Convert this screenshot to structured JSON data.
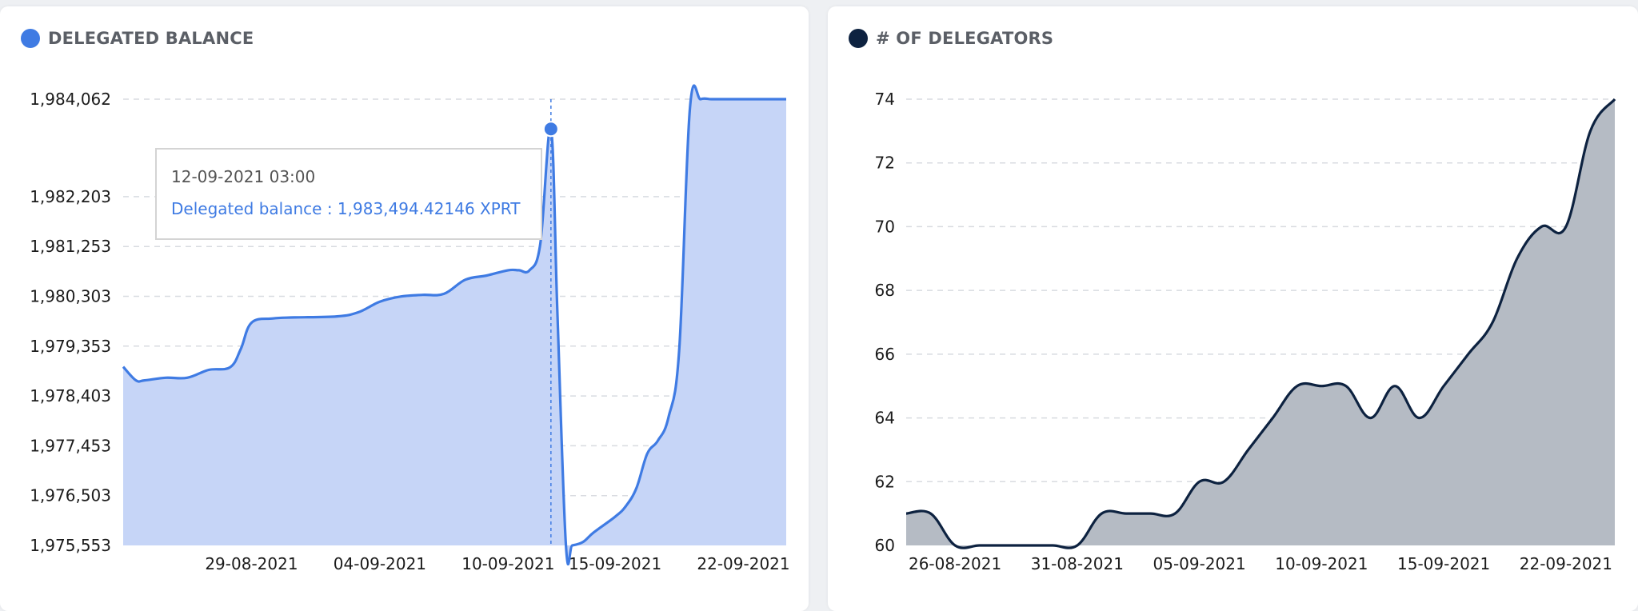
{
  "panels": {
    "left": {
      "title": "DELEGATED BALANCE",
      "color": "#3f7be3",
      "fill": "#c6d5f7",
      "tooltip": {
        "date": "12-09-2021 03:00",
        "label": "Delegated balance : 1,983,494.42146 XPRT"
      }
    },
    "right": {
      "title": "# OF DELEGATORS",
      "color": "#0d2240",
      "fill": "#b5bbc4"
    }
  },
  "chart_data": [
    {
      "type": "area",
      "title": "DELEGATED BALANCE",
      "xlabel": "",
      "ylabel": "",
      "ylim": [
        1975553,
        1984062
      ],
      "yticks": [
        1975553,
        1976503,
        1977453,
        1978403,
        1979353,
        1980303,
        1981253,
        1982203,
        1984062
      ],
      "ytick_labels": [
        "1,975,553",
        "1,976,503",
        "1,977,453",
        "1,978,403",
        "1,979,353",
        "1,980,303",
        "1,981,253",
        "1,982,203",
        "1,984,062"
      ],
      "xlim": [
        0,
        31
      ],
      "xticks": [
        6,
        12,
        18,
        23,
        29
      ],
      "xtick_labels": [
        "29-08-2021",
        "04-09-2021",
        "10-09-2021",
        "15-09-2021",
        "22-09-2021"
      ],
      "grid": true,
      "series": [
        {
          "name": "Delegated balance",
          "x": [
            0,
            0.6,
            1,
            2,
            3,
            4,
            5,
            5.5,
            6,
            7,
            8,
            10,
            11,
            12,
            13,
            14,
            15,
            16,
            17,
            18,
            18.5,
            19,
            19.5,
            20,
            20.3,
            20.7,
            21,
            21.5,
            22,
            23,
            23.5,
            24,
            24.5,
            25,
            25.5,
            26,
            26.5,
            27,
            27.5,
            28,
            29,
            30,
            31
          ],
          "y": [
            1978960,
            1978700,
            1978700,
            1978750,
            1978750,
            1978900,
            1978950,
            1979300,
            1979800,
            1979880,
            1979900,
            1979920,
            1980000,
            1980200,
            1980300,
            1980330,
            1980350,
            1980620,
            1980700,
            1980800,
            1980800,
            1980800,
            1981300,
            1983494,
            1980000,
            1975553,
            1975553,
            1975620,
            1975800,
            1976100,
            1976300,
            1976650,
            1977300,
            1977550,
            1978000,
            1979300,
            1983900,
            1984062,
            1984062,
            1984062,
            1984062,
            1984062,
            1984062
          ]
        }
      ]
    },
    {
      "type": "area",
      "title": "# OF DELEGATORS",
      "xlabel": "",
      "ylabel": "",
      "ylim": [
        60,
        74
      ],
      "yticks": [
        60,
        62,
        64,
        66,
        68,
        70,
        72,
        74
      ],
      "ytick_labels": [
        "60",
        "62",
        "64",
        "66",
        "68",
        "70",
        "72",
        "74"
      ],
      "xlim": [
        0,
        29
      ],
      "xticks": [
        2,
        7,
        12,
        17,
        22,
        27
      ],
      "xtick_labels": [
        "26-08-2021",
        "31-08-2021",
        "05-09-2021",
        "10-09-2021",
        "15-09-2021",
        "22-09-2021"
      ],
      "grid": true,
      "series": [
        {
          "name": "# of delegators",
          "x": [
            0,
            1,
            2,
            3,
            4,
            5,
            6,
            7,
            8,
            9,
            10,
            11,
            12,
            13,
            14,
            15,
            16,
            17,
            18,
            19,
            20,
            21,
            22,
            23,
            24,
            25,
            26,
            27,
            28,
            29
          ],
          "y": [
            61,
            61,
            60,
            60,
            60,
            60,
            60,
            60,
            61,
            61,
            61,
            61,
            62,
            62,
            63,
            64,
            65,
            65,
            65,
            64,
            65,
            64,
            65,
            66,
            67,
            69,
            70,
            70,
            73,
            74
          ]
        }
      ]
    }
  ]
}
